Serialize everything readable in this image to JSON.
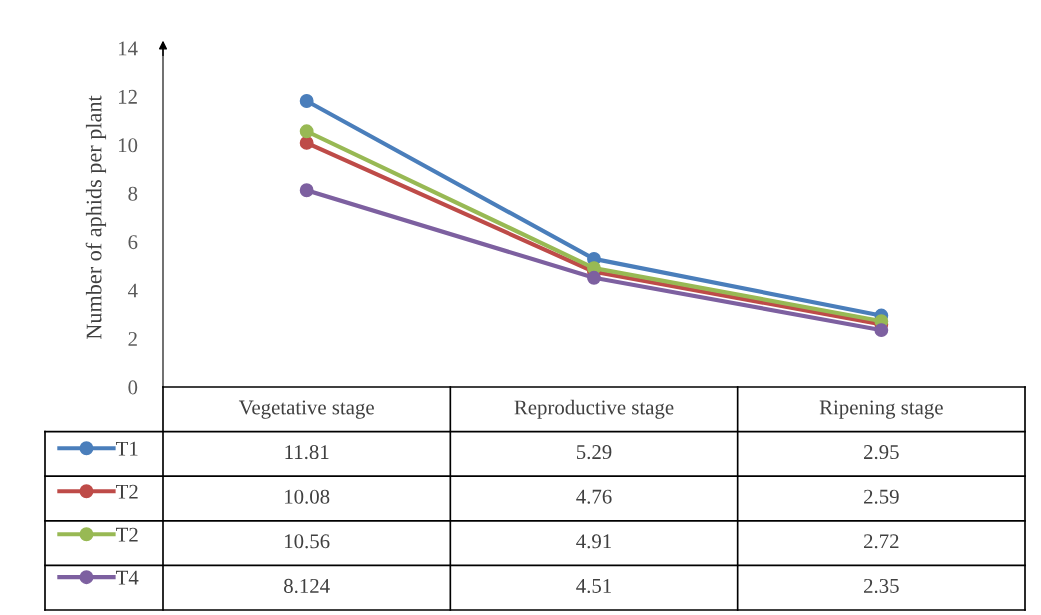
{
  "chart_data": {
    "type": "line",
    "ylabel": "Number of aphids per plant",
    "categories": [
      "Vegetative stage",
      "Reproductive stage",
      "Ripening stage"
    ],
    "series": [
      {
        "name": "T1",
        "color": "#4a7ebb",
        "values": [
          11.81,
          5.29,
          2.95
        ]
      },
      {
        "name": "T2",
        "color": "#be4b48",
        "values": [
          10.08,
          4.76,
          2.59
        ]
      },
      {
        "name": "T2",
        "color": "#98b954",
        "values": [
          10.56,
          4.91,
          2.72
        ]
      },
      {
        "name": "T4",
        "color": "#7d60a0",
        "values": [
          8.124,
          4.51,
          2.35
        ]
      }
    ],
    "ylim": [
      0,
      14
    ],
    "yticks": [
      0,
      2,
      4,
      6,
      8,
      10,
      12,
      14
    ],
    "grid": false,
    "legend": "left",
    "marker": "circle",
    "line_style": "solid",
    "data_labels": true
  }
}
